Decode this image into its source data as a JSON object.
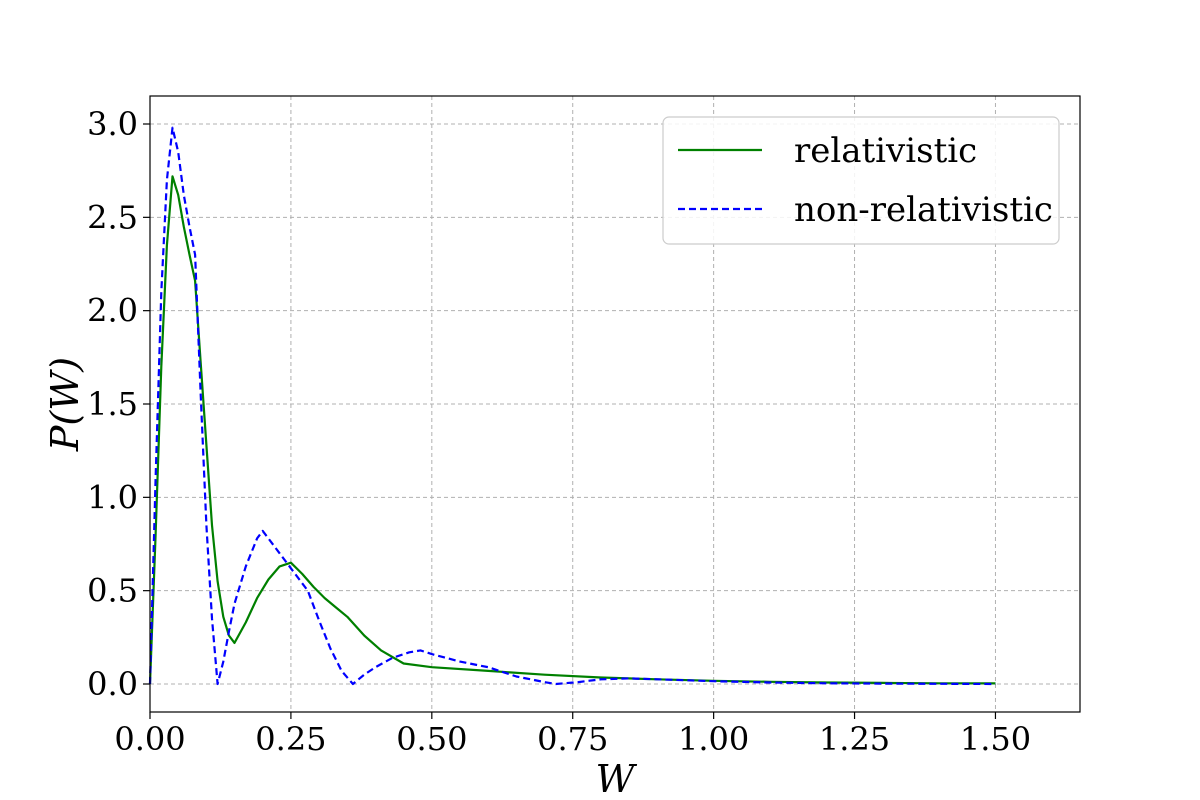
{
  "chart_data": {
    "type": "line",
    "title": "",
    "xlabel": "W",
    "ylabel": "P(W)",
    "xlim": [
      0,
      1.65
    ],
    "ylim": [
      -0.15,
      3.15
    ],
    "xticks": [
      0.0,
      0.25,
      0.5,
      0.75,
      1.0,
      1.25,
      1.5
    ],
    "xtick_labels": [
      "0.00",
      "0.25",
      "0.50",
      "0.75",
      "1.00",
      "1.25",
      "1.50"
    ],
    "yticks": [
      0.0,
      0.5,
      1.0,
      1.5,
      2.0,
      2.5,
      3.0
    ],
    "ytick_labels": [
      "0.0",
      "0.5",
      "1.0",
      "1.5",
      "2.0",
      "2.5",
      "3.0"
    ],
    "grid": true,
    "legend_position": "top-right",
    "series": [
      {
        "name": "relativistic",
        "color": "#008000",
        "dash": "solid",
        "x": [
          0.0,
          0.01,
          0.02,
          0.03,
          0.04,
          0.05,
          0.06,
          0.07,
          0.08,
          0.09,
          0.1,
          0.11,
          0.12,
          0.13,
          0.14,
          0.15,
          0.17,
          0.19,
          0.21,
          0.23,
          0.25,
          0.27,
          0.29,
          0.31,
          0.33,
          0.35,
          0.38,
          0.41,
          0.45,
          0.5,
          0.6,
          0.7,
          0.8,
          0.9,
          1.0,
          1.1,
          1.2,
          1.3,
          1.4,
          1.5
        ],
        "y": [
          0.0,
          0.8,
          1.7,
          2.35,
          2.72,
          2.62,
          2.45,
          2.3,
          2.16,
          1.72,
          1.28,
          0.85,
          0.55,
          0.36,
          0.26,
          0.22,
          0.33,
          0.46,
          0.56,
          0.63,
          0.65,
          0.59,
          0.52,
          0.46,
          0.41,
          0.36,
          0.26,
          0.18,
          0.11,
          0.09,
          0.07,
          0.05,
          0.035,
          0.025,
          0.017,
          0.012,
          0.008,
          0.006,
          0.004,
          0.003
        ]
      },
      {
        "name": "non-relativistic",
        "color": "#0000ff",
        "dash": "dashed",
        "x": [
          0.0,
          0.01,
          0.02,
          0.03,
          0.04,
          0.05,
          0.06,
          0.07,
          0.08,
          0.09,
          0.1,
          0.11,
          0.12,
          0.13,
          0.14,
          0.15,
          0.17,
          0.19,
          0.2,
          0.21,
          0.23,
          0.25,
          0.28,
          0.3,
          0.32,
          0.34,
          0.36,
          0.38,
          0.4,
          0.43,
          0.46,
          0.48,
          0.5,
          0.55,
          0.6,
          0.65,
          0.7,
          0.72,
          0.76,
          0.8,
          0.85,
          0.9,
          1.0,
          1.1,
          1.2,
          1.3,
          1.4,
          1.5
        ],
        "y": [
          0.0,
          1.1,
          2.1,
          2.7,
          2.98,
          2.85,
          2.62,
          2.45,
          2.3,
          1.55,
          0.85,
          0.35,
          0.0,
          0.12,
          0.28,
          0.43,
          0.63,
          0.78,
          0.82,
          0.78,
          0.7,
          0.62,
          0.5,
          0.34,
          0.19,
          0.07,
          0.0,
          0.05,
          0.09,
          0.14,
          0.17,
          0.18,
          0.16,
          0.12,
          0.09,
          0.04,
          0.01,
          0.0,
          0.01,
          0.025,
          0.03,
          0.025,
          0.015,
          0.008,
          0.004,
          0.002,
          0.001,
          0.0
        ]
      }
    ]
  }
}
